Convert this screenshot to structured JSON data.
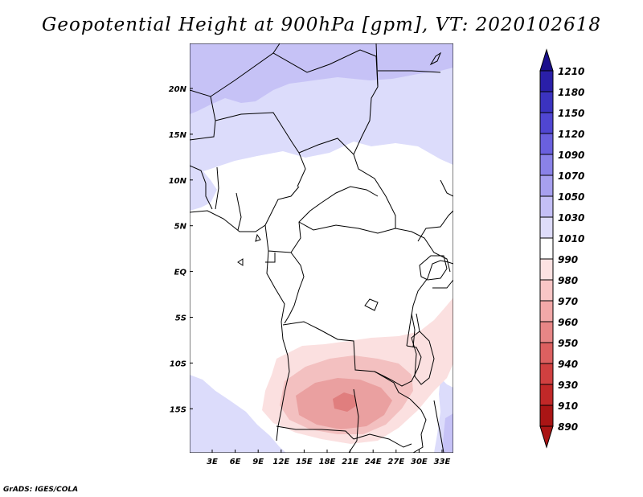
{
  "title": "Geopotential Height at 900hPa [gpm], VT: 2020102618",
  "credit": "GrADS: IGES/COLA",
  "lat_labels": [
    "20N",
    "15N",
    "10N",
    "5N",
    "EQ",
    "5S",
    "10S",
    "15S"
  ],
  "lon_labels": [
    "3E",
    "6E",
    "9E",
    "12E",
    "15E",
    "18E",
    "21E",
    "24E",
    "27E",
    "30E",
    "33E"
  ],
  "colorbar": {
    "levels": [
      "1210",
      "1180",
      "1150",
      "1120",
      "1090",
      "1070",
      "1050",
      "1030",
      "1010",
      "990",
      "980",
      "970",
      "960",
      "950",
      "940",
      "930",
      "910",
      "890"
    ],
    "colors": [
      "#1a0f8c",
      "#2a1fa8",
      "#3b33c0",
      "#5046d2",
      "#6a60de",
      "#8a82e8",
      "#a7a0ef",
      "#c4bff6",
      "#dedcfa",
      "#ffffff",
      "#fce2e2",
      "#f9c6c6",
      "#f2a8a8",
      "#e78686",
      "#dc6060",
      "#d04040",
      "#c12828",
      "#aa1515"
    ]
  },
  "colors": {
    "low_900": "#e07e7e",
    "low_950": "#eaa0a0",
    "low_970": "#f3c0c0",
    "low_980": "#fbe0e0",
    "high_1010": "#dcdcfb",
    "high_1030": "#c6c2f6"
  }
}
